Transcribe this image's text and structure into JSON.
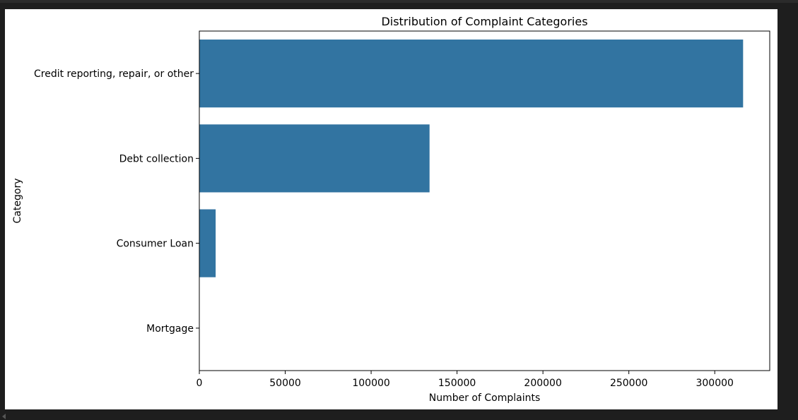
{
  "colors": {
    "bar": "#3274a1",
    "axis": "#000000",
    "page_bg": "#1e1e1e",
    "figure_bg": "#ffffff"
  },
  "chart_data": {
    "type": "bar",
    "orientation": "horizontal",
    "title": "Distribution of Complaint Categories",
    "xlabel": "Number of Complaints",
    "ylabel": "Category",
    "categories": [
      "Credit reporting, repair, or other",
      "Debt collection",
      "Consumer Loan",
      "Mortgage"
    ],
    "values": [
      316500,
      134000,
      9500,
      0
    ],
    "xlim": [
      0,
      332000
    ],
    "xticks": [
      0,
      50000,
      100000,
      150000,
      200000,
      250000,
      300000
    ],
    "xtick_labels": [
      "0",
      "50000",
      "100000",
      "150000",
      "200000",
      "250000",
      "300000"
    ],
    "grid": false,
    "legend": "none"
  }
}
